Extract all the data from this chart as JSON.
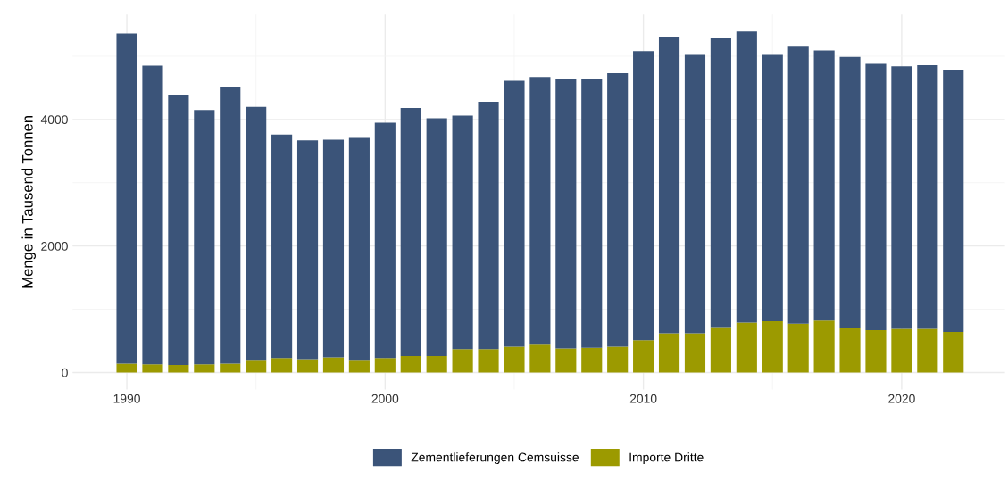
{
  "chart_data": {
    "type": "bar",
    "stacked": true,
    "ylabel": "Menge in Tausend Tonnen",
    "x": [
      1990,
      1991,
      1992,
      1993,
      1994,
      1995,
      1996,
      1997,
      1998,
      1999,
      2000,
      2001,
      2002,
      2003,
      2004,
      2005,
      2006,
      2007,
      2008,
      2009,
      2010,
      2011,
      2012,
      2013,
      2014,
      2015,
      2016,
      2017,
      2018,
      2019,
      2020,
      2021,
      2022
    ],
    "series": [
      {
        "name": "Importe Dritte",
        "color": "#9c9a00",
        "values": [
          140,
          130,
          120,
          130,
          140,
          200,
          230,
          210,
          240,
          200,
          230,
          260,
          260,
          370,
          370,
          410,
          440,
          380,
          390,
          410,
          510,
          620,
          620,
          720,
          790,
          810,
          770,
          820,
          710,
          670,
          690,
          690,
          640
        ]
      },
      {
        "name": "Zementlieferungen Cemsuisse",
        "color": "#3b5479",
        "values": [
          5220,
          4720,
          4260,
          4020,
          4380,
          4000,
          3530,
          3460,
          3440,
          3510,
          3720,
          3920,
          3760,
          3690,
          3910,
          4200,
          4230,
          4260,
          4250,
          4320,
          4570,
          4680,
          4400,
          4560,
          4600,
          4210,
          4380,
          4270,
          4280,
          4210,
          4150,
          4170,
          4140
        ]
      }
    ],
    "xlim": [
      1987.9,
      2024
    ],
    "xticks": [
      1990,
      2000,
      2010,
      2020
    ],
    "ylim": [
      -270,
      5660
    ],
    "yticks": [
      0,
      2000,
      4000
    ],
    "grid": true,
    "legend": "bottom"
  }
}
